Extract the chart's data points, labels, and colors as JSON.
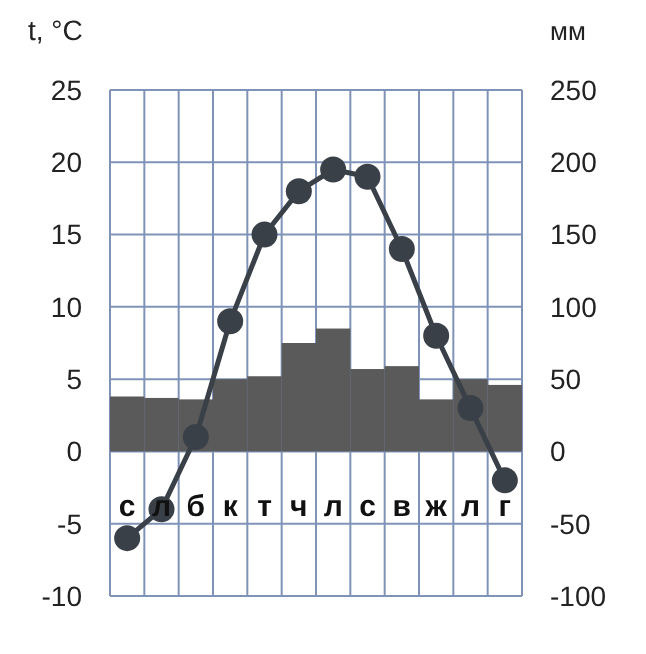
{
  "chart_data": {
    "type": "bar",
    "xlabel": null,
    "ylabel": "t, °C",
    "y2label": "мм",
    "categories": [
      "с",
      "л",
      "б",
      "к",
      "т",
      "ч",
      "л",
      "с",
      "в",
      "ж",
      "л",
      "г"
    ],
    "series": [
      {
        "axis": "y2",
        "color": "#5a5a5a",
        "values": [
          38,
          37,
          36,
          50,
          52,
          75,
          85,
          57,
          59,
          36,
          50,
          46
        ]
      },
      {
        "type": "line",
        "axis": "y",
        "color": "#3a4048",
        "marker": "circle",
        "values": [
          -6,
          -4,
          1,
          9,
          15,
          18,
          19.5,
          19,
          14,
          8,
          3,
          -2
        ]
      }
    ],
    "ylim": [
      -10,
      25
    ],
    "yticks": [
      -10,
      -5,
      0,
      5,
      10,
      15,
      20,
      25
    ],
    "y2lim": [
      -100,
      250
    ],
    "y2ticks": [
      -100,
      -50,
      0,
      50,
      100,
      150,
      200,
      250
    ],
    "grid": true
  }
}
